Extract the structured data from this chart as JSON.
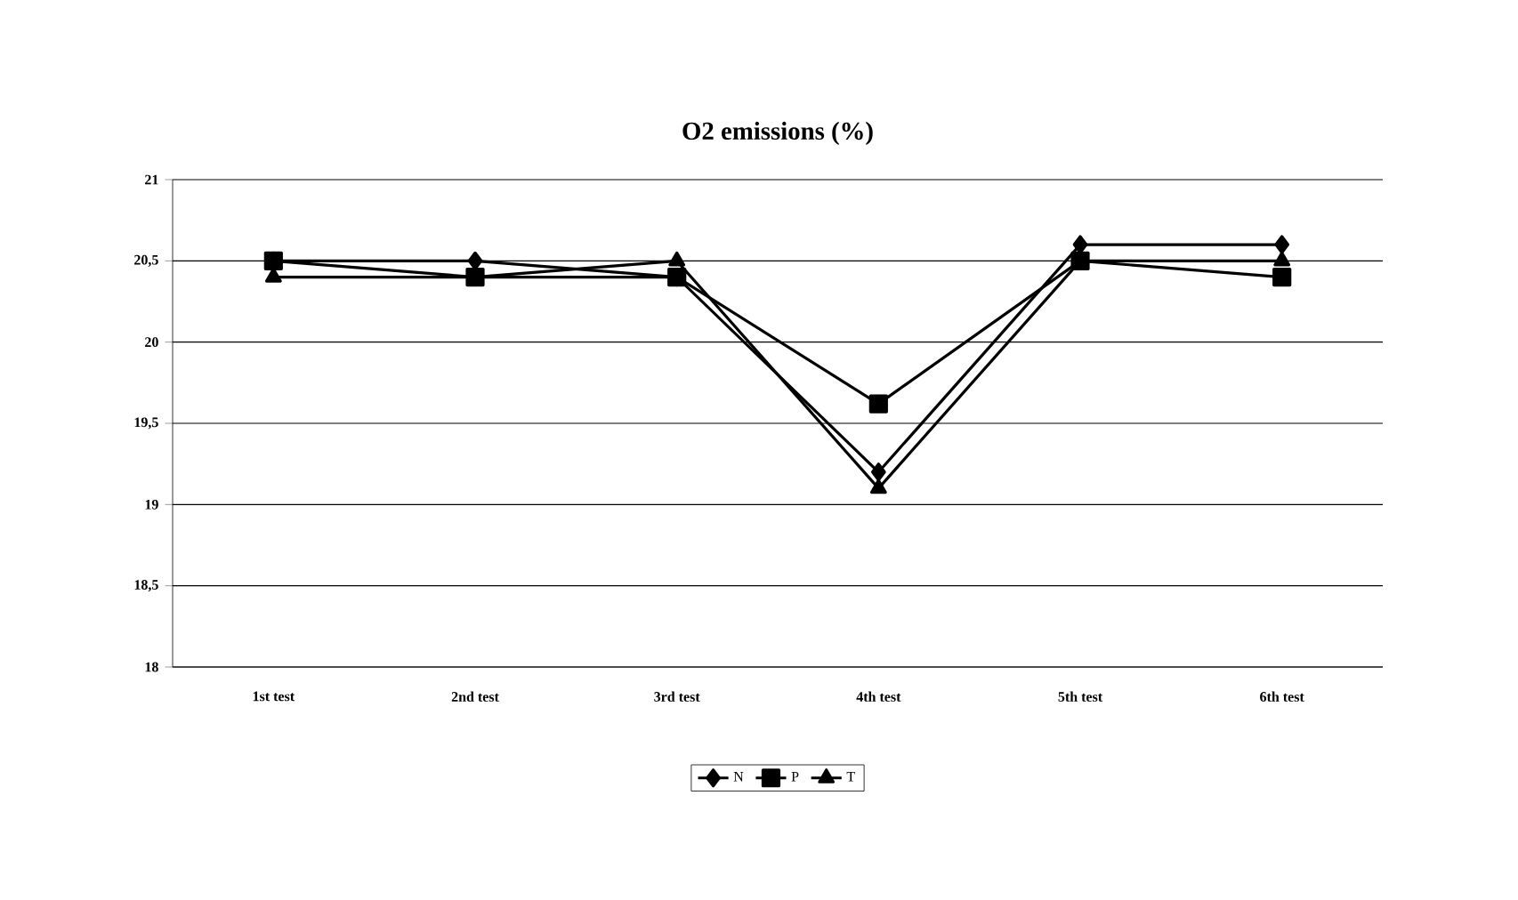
{
  "chart_data": {
    "type": "line",
    "title": "O2 emissions   (%)",
    "categories": [
      "1st test",
      "2nd test",
      "3rd test",
      "4th test",
      "5th test",
      "6th test"
    ],
    "series": [
      {
        "name": "N",
        "color": "#000000",
        "marker": "diamond",
        "values": [
          20.5,
          20.5,
          20.4,
          19.2,
          20.6,
          20.6
        ]
      },
      {
        "name": "P",
        "color": "#000000",
        "marker": "square",
        "values": [
          20.5,
          20.4,
          20.4,
          19.62,
          20.5,
          20.4
        ]
      },
      {
        "name": "T",
        "color": "#000000",
        "marker": "triangle",
        "values": [
          20.4,
          20.4,
          20.5,
          19.1,
          20.5,
          20.5
        ]
      }
    ],
    "ylim": [
      18,
      21
    ],
    "yticks": [
      18,
      {
        "value": 18.5,
        "label": "18,5"
      },
      19,
      {
        "value": 19.5,
        "label": "19,5"
      },
      20,
      {
        "value": 20.5,
        "label": "20,5"
      },
      21
    ],
    "grid": "y",
    "legend": "bottom",
    "line_style": "solid"
  }
}
